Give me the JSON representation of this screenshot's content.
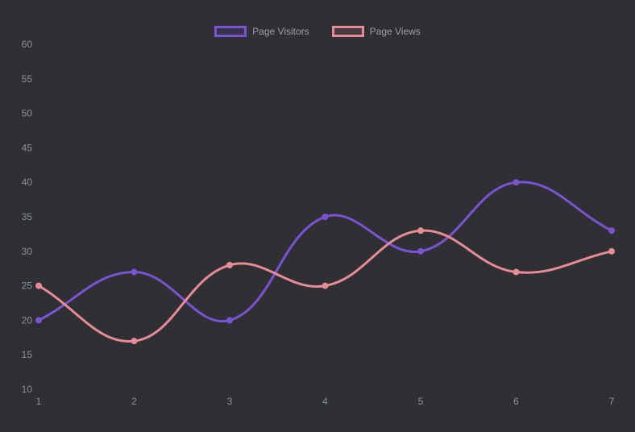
{
  "page": {
    "background_color": "#2e3034",
    "tick_text_color": "#8d9097",
    "legend_text_color": "#9b9ea5"
  },
  "legend": {
    "items": [
      {
        "label": "Page Visitors",
        "color": "#7b52d3"
      },
      {
        "label": "Page Views",
        "color": "#e98b94"
      }
    ]
  },
  "chart_data": {
    "type": "line",
    "title": "",
    "xlabel": "",
    "ylabel": "",
    "categories": [
      "1",
      "2",
      "3",
      "4",
      "5",
      "6",
      "7"
    ],
    "series": [
      {
        "name": "Page Visitors",
        "color": "#7b52d3",
        "values": [
          20,
          27,
          20,
          35,
          30,
          40,
          33
        ]
      },
      {
        "name": "Page Views",
        "color": "#e98b94",
        "values": [
          25,
          17,
          28,
          25,
          33,
          27,
          30
        ]
      }
    ],
    "ylim": [
      10,
      60
    ],
    "ytick_step": 5,
    "grid": false,
    "axis_lines": false,
    "legend_position": "top",
    "line_tension": 0.4,
    "line_width": 3,
    "point_radius": 4
  }
}
